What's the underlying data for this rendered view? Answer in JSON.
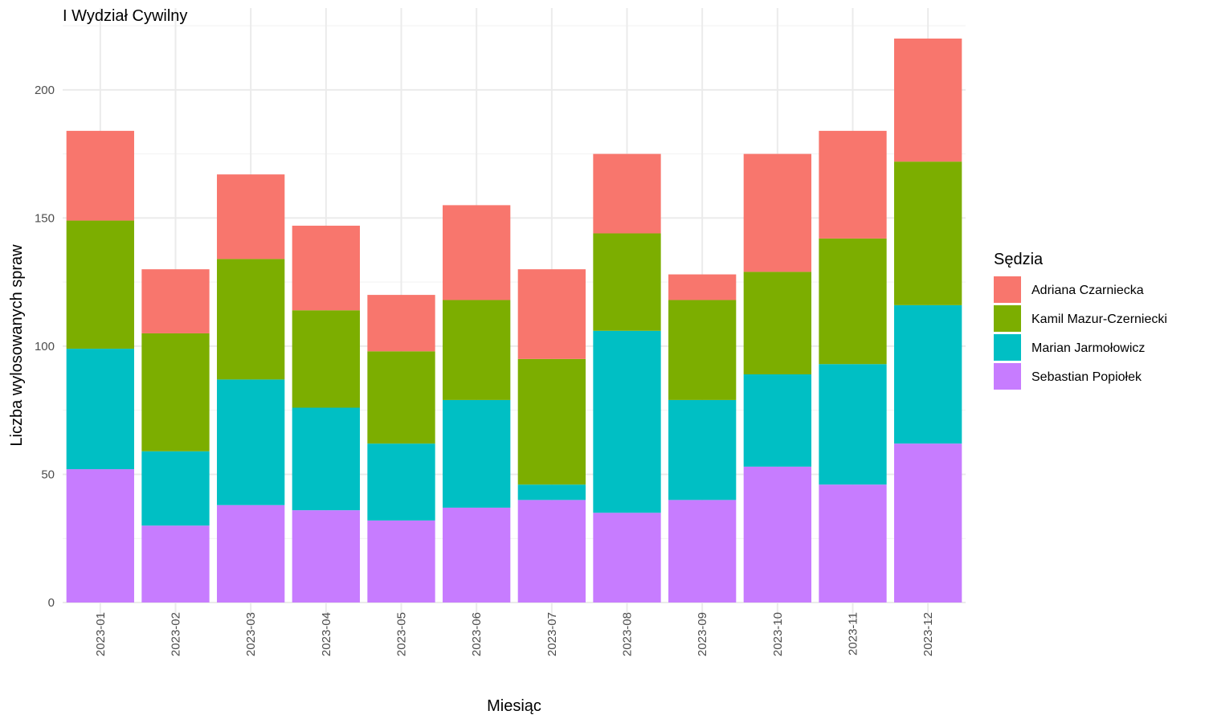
{
  "chart_data": {
    "type": "bar",
    "stacked": true,
    "title": "I Wydział Cywilny",
    "xlabel": "Miesiąc",
    "ylabel": "Liczba wylosowanych spraw",
    "ylim": [
      0,
      220
    ],
    "yticks": [
      0,
      50,
      100,
      150,
      200
    ],
    "grid": true,
    "legend": {
      "title": "Sędzia",
      "position": "right"
    },
    "categories": [
      "2023-01",
      "2023-02",
      "2023-03",
      "2023-04",
      "2023-05",
      "2023-06",
      "2023-07",
      "2023-08",
      "2023-09",
      "2023-10",
      "2023-11",
      "2023-12"
    ],
    "series": [
      {
        "name": "Sebastian Popiołek",
        "color": "#C77CFF",
        "values": [
          52,
          30,
          38,
          36,
          32,
          37,
          40,
          35,
          40,
          53,
          46,
          62
        ]
      },
      {
        "name": "Marian Jarmołowicz",
        "color": "#00BFC4",
        "values": [
          47,
          29,
          49,
          40,
          30,
          42,
          6,
          71,
          39,
          36,
          47,
          54
        ]
      },
      {
        "name": "Kamil Mazur-Czerniecki",
        "color": "#7CAE00",
        "values": [
          50,
          46,
          47,
          38,
          36,
          39,
          49,
          38,
          39,
          40,
          49,
          56
        ]
      },
      {
        "name": "Adriana Czarniecka",
        "color": "#F8766D",
        "values": [
          35,
          25,
          33,
          33,
          22,
          37,
          35,
          31,
          10,
          46,
          42,
          48
        ]
      }
    ],
    "legend_order": [
      "Adriana Czarniecka",
      "Kamil Mazur-Czerniecki",
      "Marian Jarmołowicz",
      "Sebastian Popiołek"
    ]
  }
}
